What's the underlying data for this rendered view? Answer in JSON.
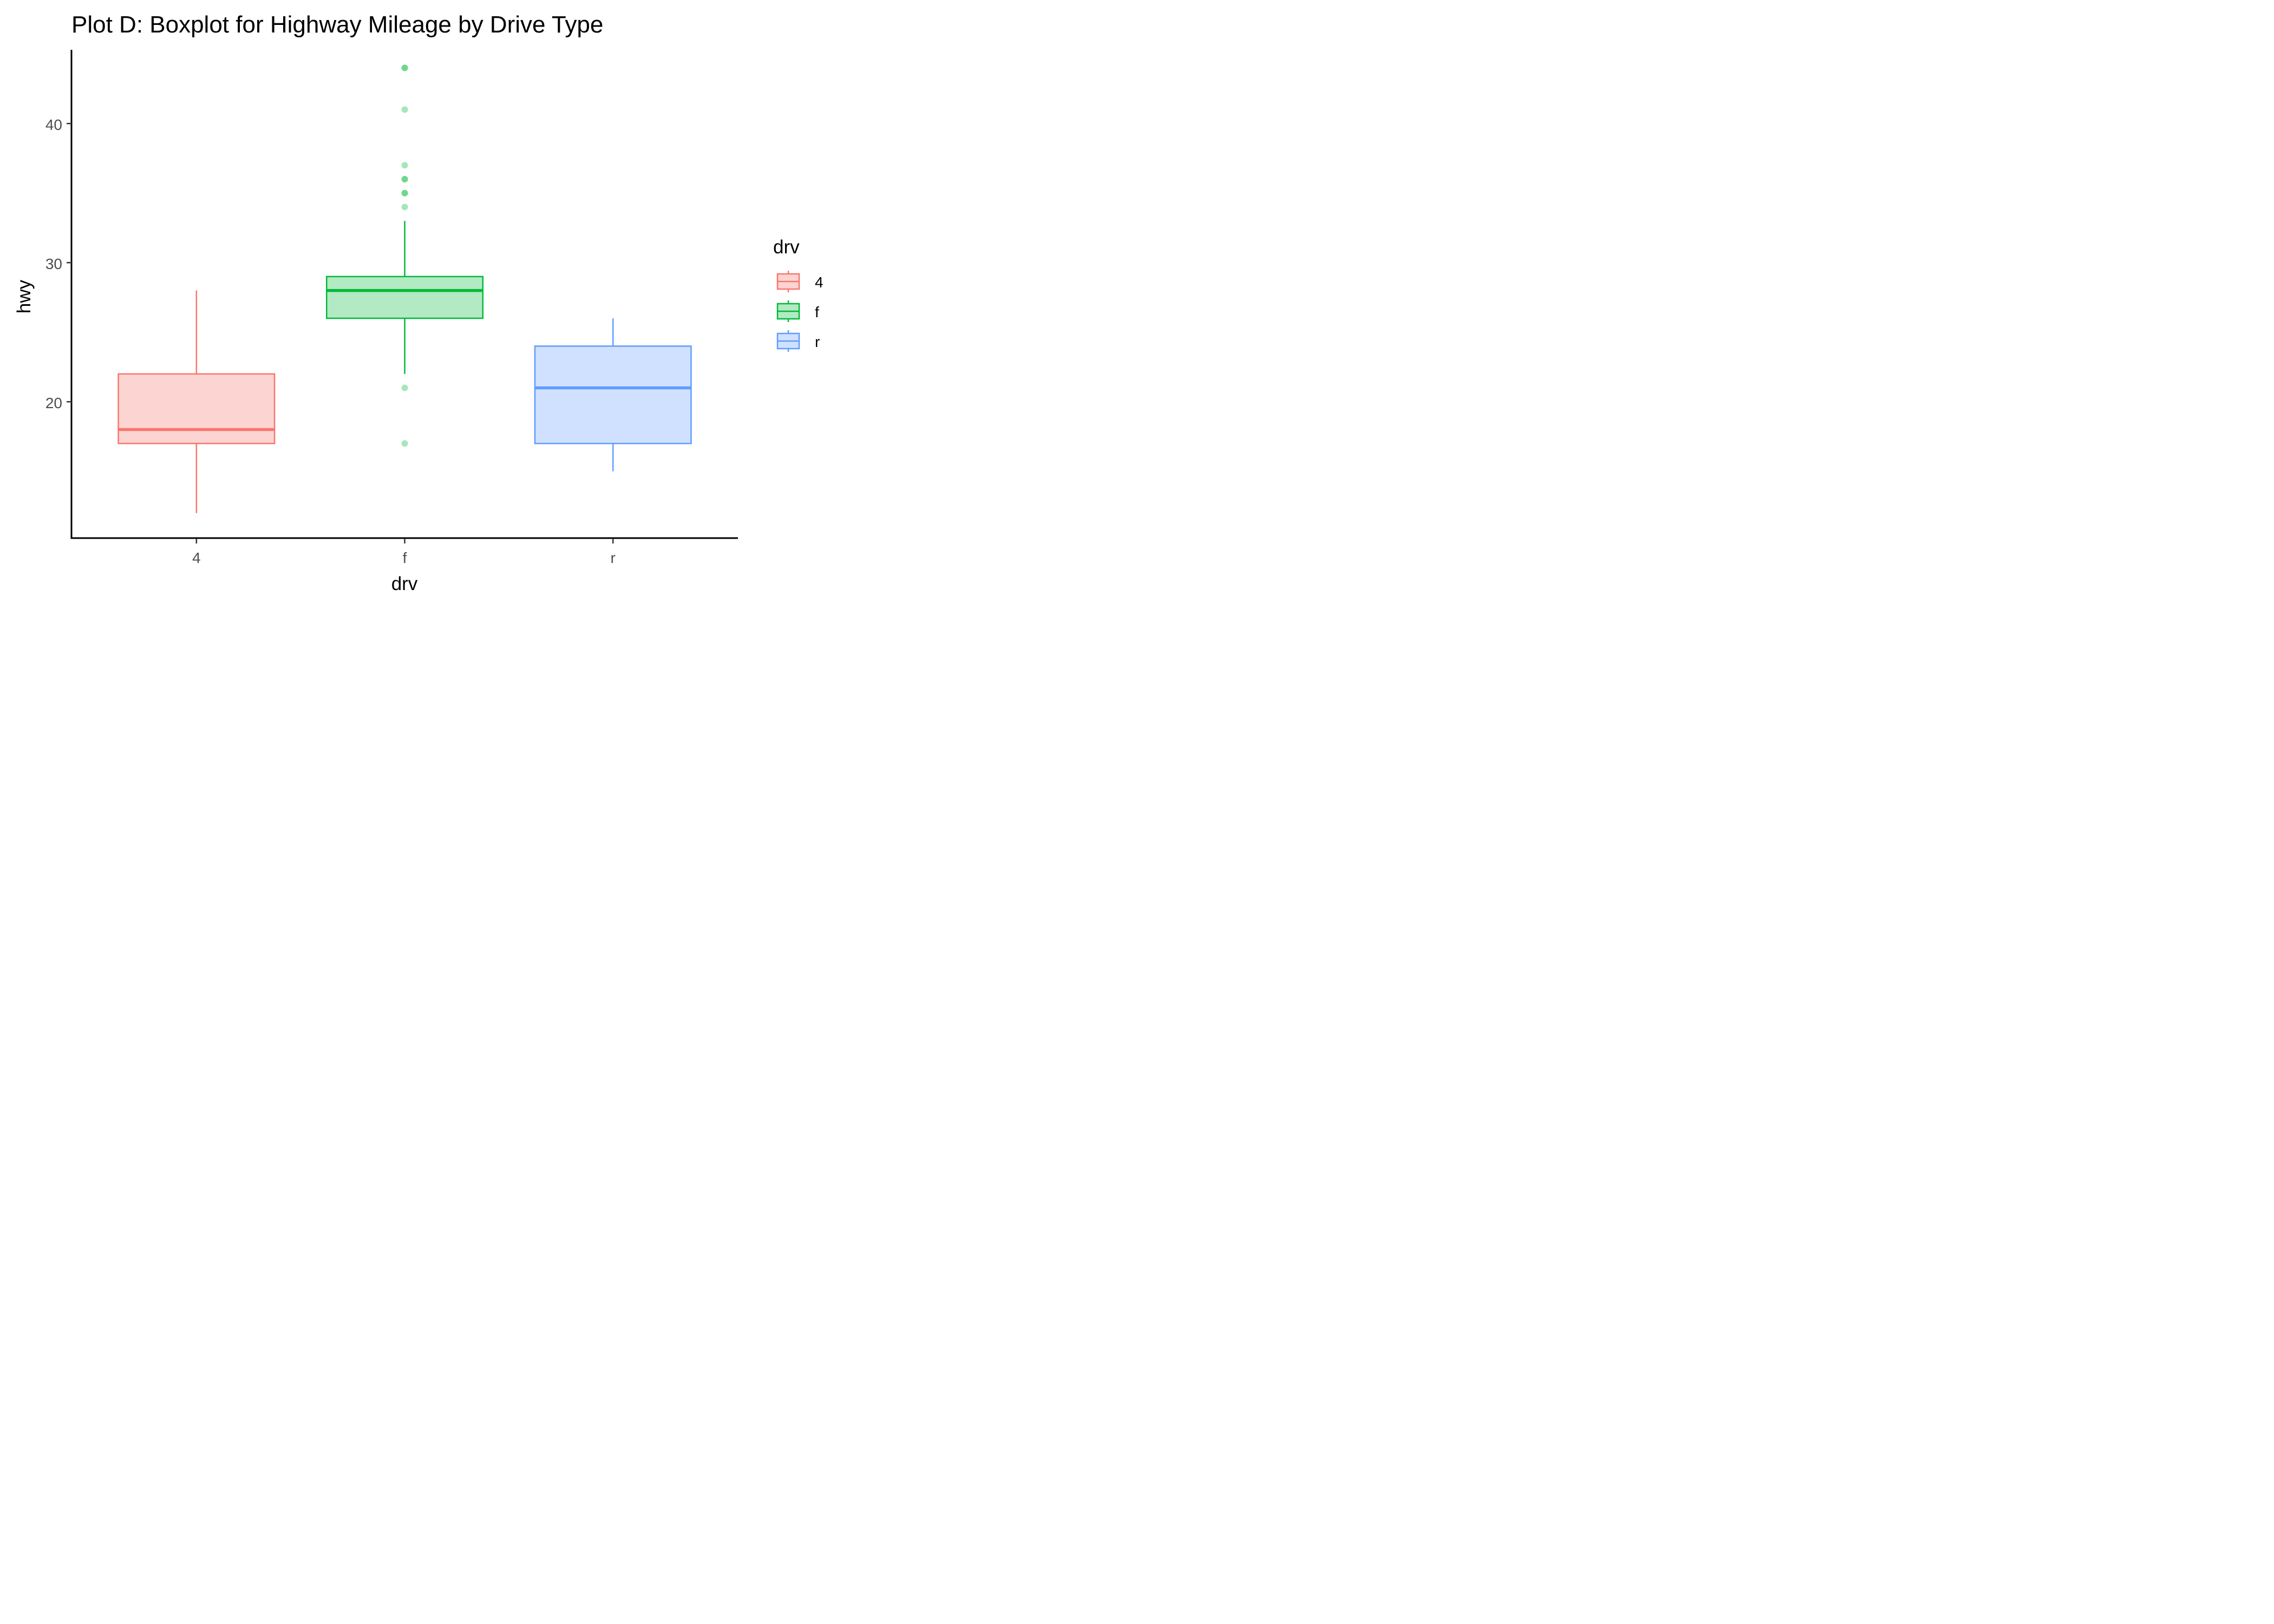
{
  "chart_data": {
    "type": "boxplot",
    "title": "Plot D: Boxplot for Highway Mileage by Drive Type",
    "xlabel": "drv",
    "ylabel": "hwy",
    "categories": [
      "4",
      "f",
      "r"
    ],
    "y_ticks": [
      20,
      30,
      40
    ],
    "ylim": [
      10.2,
      45.3
    ],
    "grid": false,
    "legend": {
      "title": "drv",
      "position": "right",
      "entries": [
        "4",
        "f",
        "r"
      ]
    },
    "boxes": [
      {
        "category": "4",
        "whisker_low": 12,
        "q1": 17,
        "median": 18,
        "q3": 22,
        "whisker_high": 28,
        "outliers": [],
        "color": "#F8766D",
        "fill": "#FCD5D3"
      },
      {
        "category": "f",
        "whisker_low": 22,
        "q1": 26,
        "median": 28,
        "q3": 29,
        "whisker_high": 33,
        "outliers": [
          17,
          21,
          34,
          35,
          35,
          36,
          36,
          37,
          41,
          44,
          44
        ],
        "color": "#00BA38",
        "fill": "#B2EAC3"
      },
      {
        "category": "r",
        "whisker_low": 15,
        "q1": 17,
        "median": 21,
        "q3": 24,
        "whisker_high": 26,
        "outliers": [],
        "color": "#619CFF",
        "fill": "#D0E1FF"
      }
    ]
  }
}
